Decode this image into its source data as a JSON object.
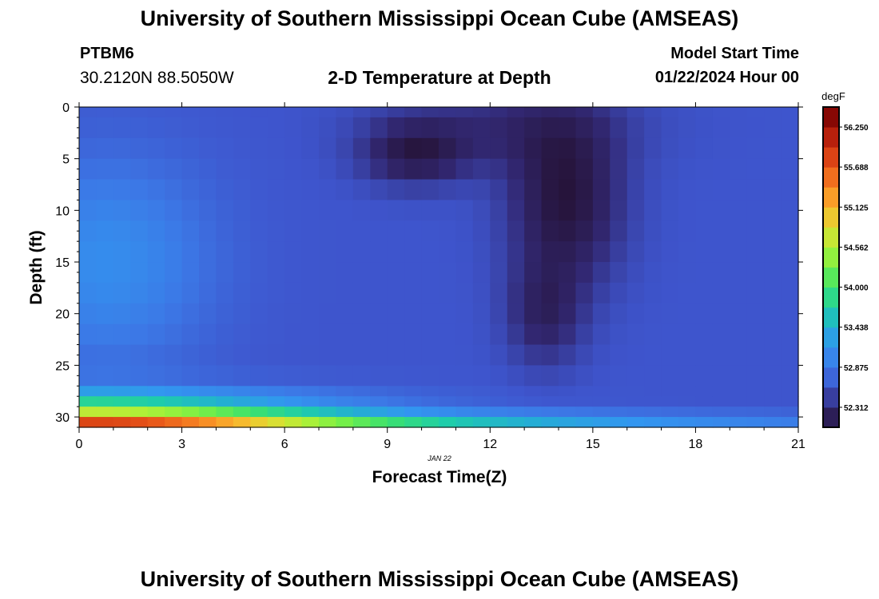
{
  "header": {
    "title": "University of Southern Mississippi Ocean Cube (AMSEAS)",
    "station": "PTBM6",
    "coordinates": "30.2120N  88.5050W",
    "subtitle": "2-D Temperature at Depth",
    "model_start_label": "Model Start Time",
    "model_start_value": "01/22/2024 Hour 00"
  },
  "footer": {
    "title": "University of Southern Mississippi Ocean Cube (AMSEAS)"
  },
  "chart_data": {
    "type": "heatmap",
    "title": "2-D Temperature at Depth",
    "xlabel": "Forecast Time(Z)",
    "ylabel": "Depth (ft)",
    "date_label": "JAN 22",
    "xlim": [
      0,
      21
    ],
    "ylim": [
      0,
      31
    ],
    "x_ticks": [
      0,
      3,
      6,
      9,
      12,
      15,
      18,
      21
    ],
    "x_tick_labels": [
      "0",
      "3",
      "6",
      "9",
      "12",
      "15",
      "18",
      "21"
    ],
    "y_ticks": [
      0,
      5,
      10,
      15,
      20,
      25,
      30
    ],
    "y_tick_labels": [
      "0",
      "5",
      "10",
      "15",
      "20",
      "25",
      "30"
    ],
    "colorbar": {
      "unit": "degF",
      "range": [
        52.031,
        56.531
      ],
      "tick_values": [
        52.312,
        52.875,
        53.438,
        54.0,
        54.562,
        55.125,
        55.688,
        56.25
      ],
      "tick_labels": [
        "52.312",
        "52.875",
        "53.438",
        "54.000",
        "54.562",
        "55.125",
        "55.688",
        "56.250"
      ]
    },
    "grid": {
      "x_step_hours": 0.5,
      "depth_levels_ft": [
        0,
        1,
        3,
        5,
        7,
        9,
        11,
        13,
        15,
        17,
        19,
        21,
        23,
        25,
        27,
        28,
        29,
        30,
        31
      ]
    }
  }
}
